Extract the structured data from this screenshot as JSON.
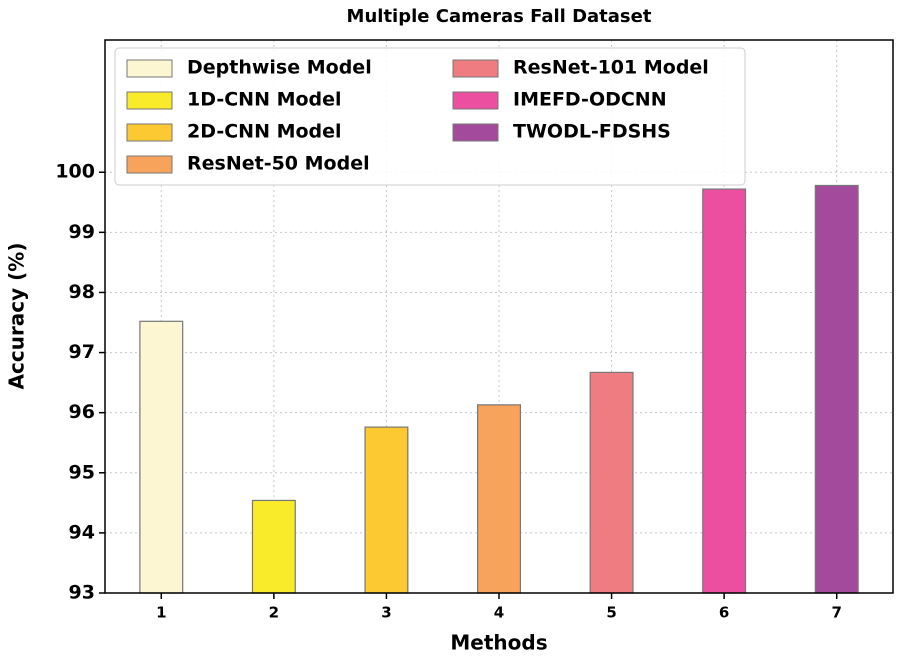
{
  "chart_data": {
    "type": "bar",
    "title": "Multiple Cameras Fall Dataset",
    "xlabel": "Methods",
    "ylabel": "Accuracy (%)",
    "categories": [
      "1",
      "2",
      "3",
      "4",
      "5",
      "6",
      "7"
    ],
    "series": [
      {
        "name": "Depthwise Model",
        "color": "#fcf6d2",
        "values": [
          97.52,
          null,
          null,
          null,
          null,
          null,
          null
        ]
      },
      {
        "name": "1D-CNN Model",
        "color": "#f9ea2a",
        "values": [
          null,
          94.54,
          null,
          null,
          null,
          null,
          null
        ]
      },
      {
        "name": "2D-CNN Model",
        "color": "#fdc932",
        "values": [
          null,
          null,
          95.76,
          null,
          null,
          null,
          null
        ]
      },
      {
        "name": "ResNet-50 Model",
        "color": "#f8a35c",
        "values": [
          null,
          null,
          null,
          96.13,
          null,
          null,
          null
        ]
      },
      {
        "name": "ResNet-101 Model",
        "color": "#ef7c80",
        "values": [
          null,
          null,
          null,
          null,
          96.67,
          null,
          null
        ]
      },
      {
        "name": "IMEFD-ODCNN",
        "color": "#ec4f9f",
        "values": [
          null,
          null,
          null,
          null,
          null,
          99.72,
          null
        ]
      },
      {
        "name": "TWODL-FDSHS",
        "color": "#a44a9c",
        "values": [
          null,
          null,
          null,
          null,
          null,
          null,
          99.78
        ]
      }
    ],
    "ylim": [
      93,
      102.2
    ],
    "yticks": [
      93,
      94,
      95,
      96,
      97,
      98,
      99,
      100
    ],
    "grid": true,
    "legend": "upper left"
  }
}
